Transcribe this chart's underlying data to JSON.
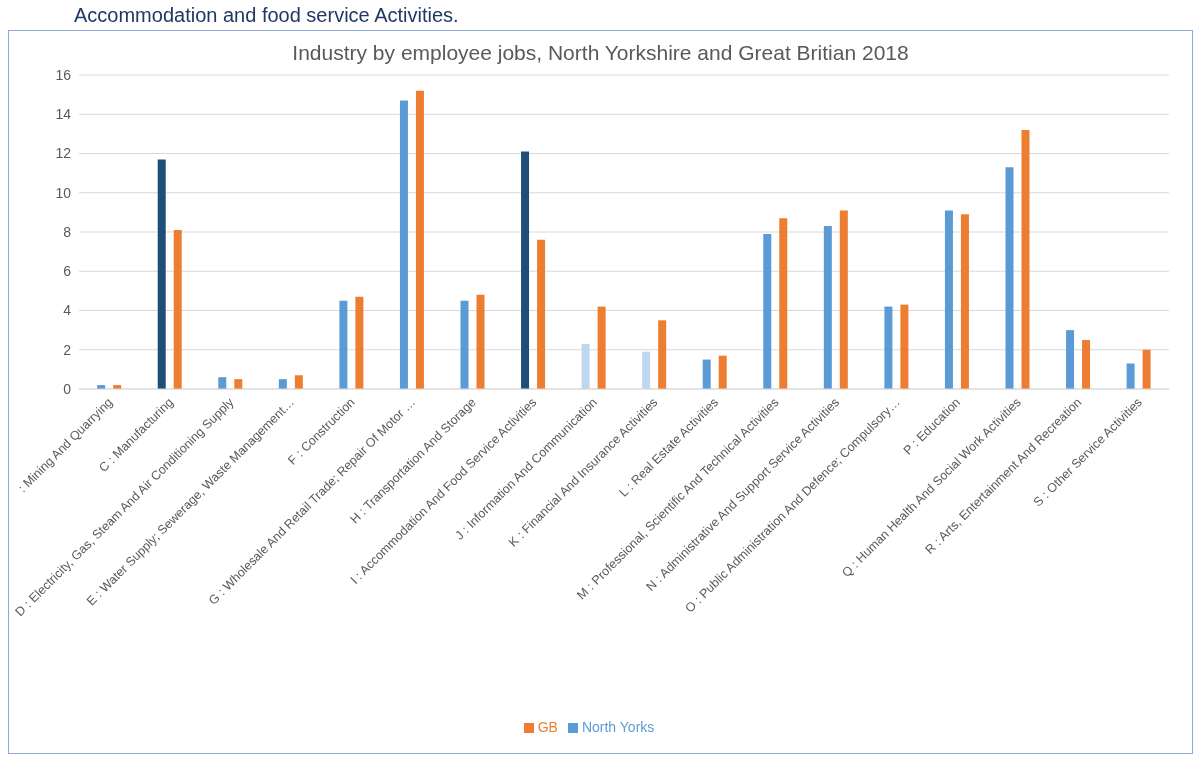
{
  "chart_data": {
    "type": "bar",
    "title": "Industry by employee jobs, North Yorkshire and Great Britian 2018",
    "annotations": [
      "Accommodation and food service Activities."
    ],
    "categories": [
      ": Mining And Quarrying",
      "C : Manufacturing",
      "D : Electricity, Gas, Steam And Air Conditioning Supply",
      "E : Water Supply; Sewerage, Waste Management…",
      "F : Construction",
      "G : Wholesale And Retail Trade; Repair Of Motor …",
      "H : Transportation And Storage",
      "I : Accommodation And Food Service Activities",
      "J : Information And Communication",
      "K : Financial And Insurance Activities",
      "L : Real Estate Activities",
      "M : Professional, Scientific And Technical Activities",
      "N : Administrative And Support Service Activities",
      "O : Public Administration And Defence; Compulsory…",
      "P : Education",
      "Q : Human Health And Social Work Activities",
      "R : Arts, Entertainment And Recreation",
      "S : Other Service Activities"
    ],
    "series": [
      {
        "name": "North Yorks",
        "color": "#5b9bd5",
        "colors": [
          "#5b9bd5",
          "#1f4e79",
          "#5b9bd5",
          "#5b9bd5",
          "#5b9bd5",
          "#5b9bd5",
          "#5b9bd5",
          "#1f4e79",
          "#bdd7ee",
          "#bdd7ee",
          "#5b9bd5",
          "#5b9bd5",
          "#5b9bd5",
          "#5b9bd5",
          "#5b9bd5",
          "#5b9bd5",
          "#5b9bd5",
          "#5b9bd5"
        ],
        "values": [
          0.2,
          11.7,
          0.6,
          0.5,
          4.5,
          14.7,
          4.5,
          12.1,
          2.3,
          1.9,
          1.5,
          7.9,
          8.3,
          4.2,
          9.1,
          11.3,
          3.0,
          1.3
        ]
      },
      {
        "name": "GB",
        "color": "#ed7d31",
        "values": [
          0.2,
          8.1,
          0.5,
          0.7,
          4.7,
          15.2,
          4.8,
          7.6,
          4.2,
          3.5,
          1.7,
          8.7,
          9.1,
          4.3,
          8.9,
          13.2,
          2.5,
          2.0
        ]
      }
    ],
    "ylim": [
      0,
      16
    ],
    "yticks": [
      0,
      2,
      4,
      6,
      8,
      10,
      12,
      14,
      16
    ],
    "grid": "y",
    "legend": "bottom"
  }
}
